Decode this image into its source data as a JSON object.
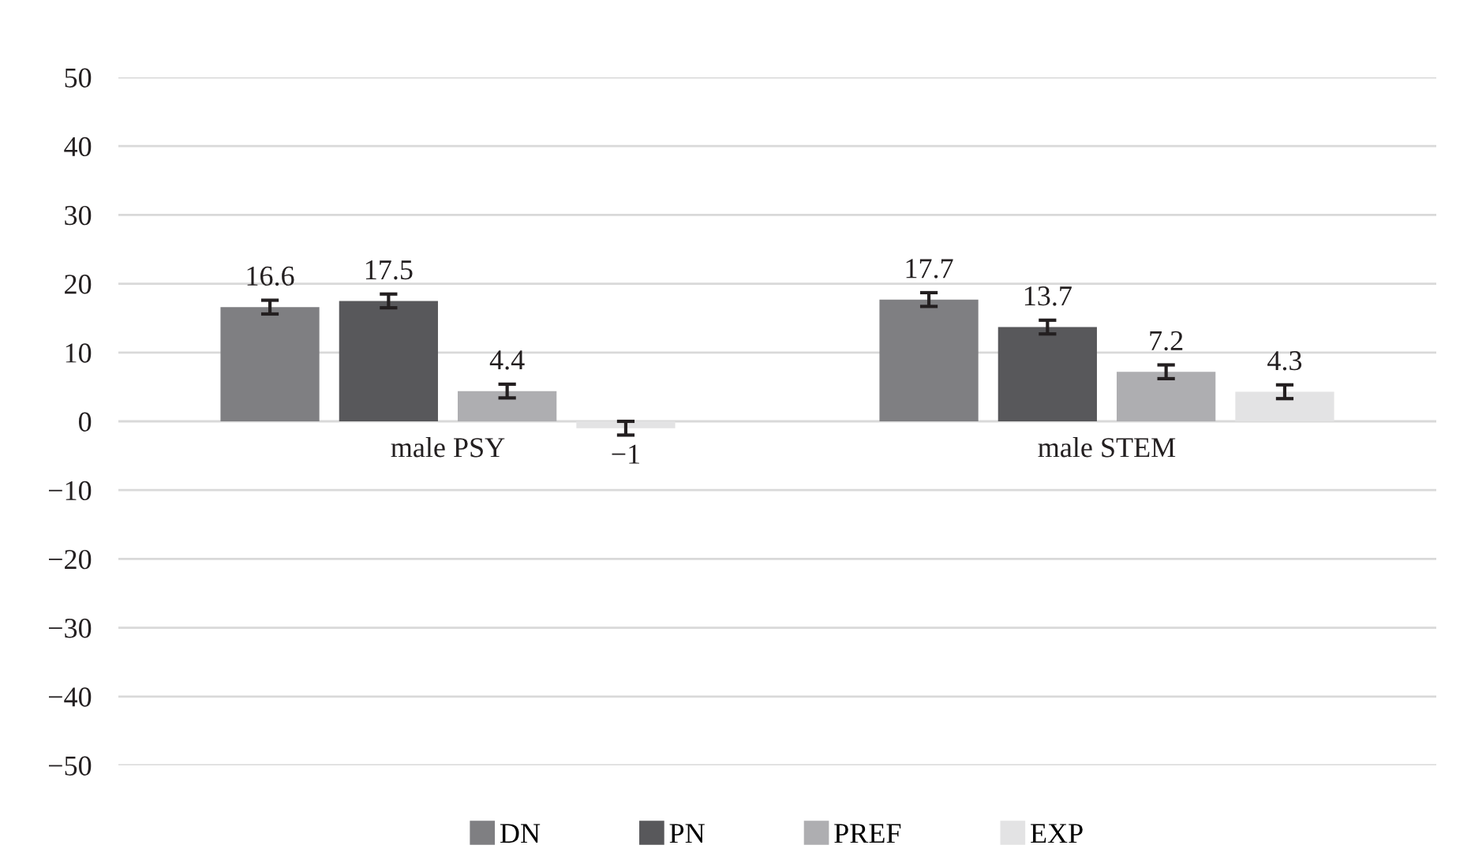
{
  "chart_data": {
    "type": "bar",
    "categories": [
      "male PSY",
      "male STEM"
    ],
    "series": [
      {
        "name": "DN",
        "color": "#7f7f82",
        "values": [
          16.6,
          17.7
        ],
        "errors": [
          1,
          1
        ]
      },
      {
        "name": "PN",
        "color": "#58585b",
        "values": [
          17.5,
          13.7
        ],
        "errors": [
          1,
          1
        ]
      },
      {
        "name": "PREF",
        "color": "#aeaeb1",
        "values": [
          4.4,
          7.2
        ],
        "errors": [
          1,
          1
        ]
      },
      {
        "name": "EXP",
        "color": "#e3e3e4",
        "values": [
          -1,
          4.3
        ],
        "errors": [
          1,
          1
        ]
      }
    ],
    "ylim": [
      -50,
      50
    ],
    "yticks": [
      {
        "value": -50,
        "label": "−50"
      },
      {
        "value": -40,
        "label": "−40"
      },
      {
        "value": -30,
        "label": "−30"
      },
      {
        "value": -20,
        "label": "−20"
      },
      {
        "value": -10,
        "label": "−10"
      },
      0,
      10,
      20,
      30,
      40,
      50
    ],
    "grid": "y",
    "legend": "bottom",
    "data_labels": true
  }
}
